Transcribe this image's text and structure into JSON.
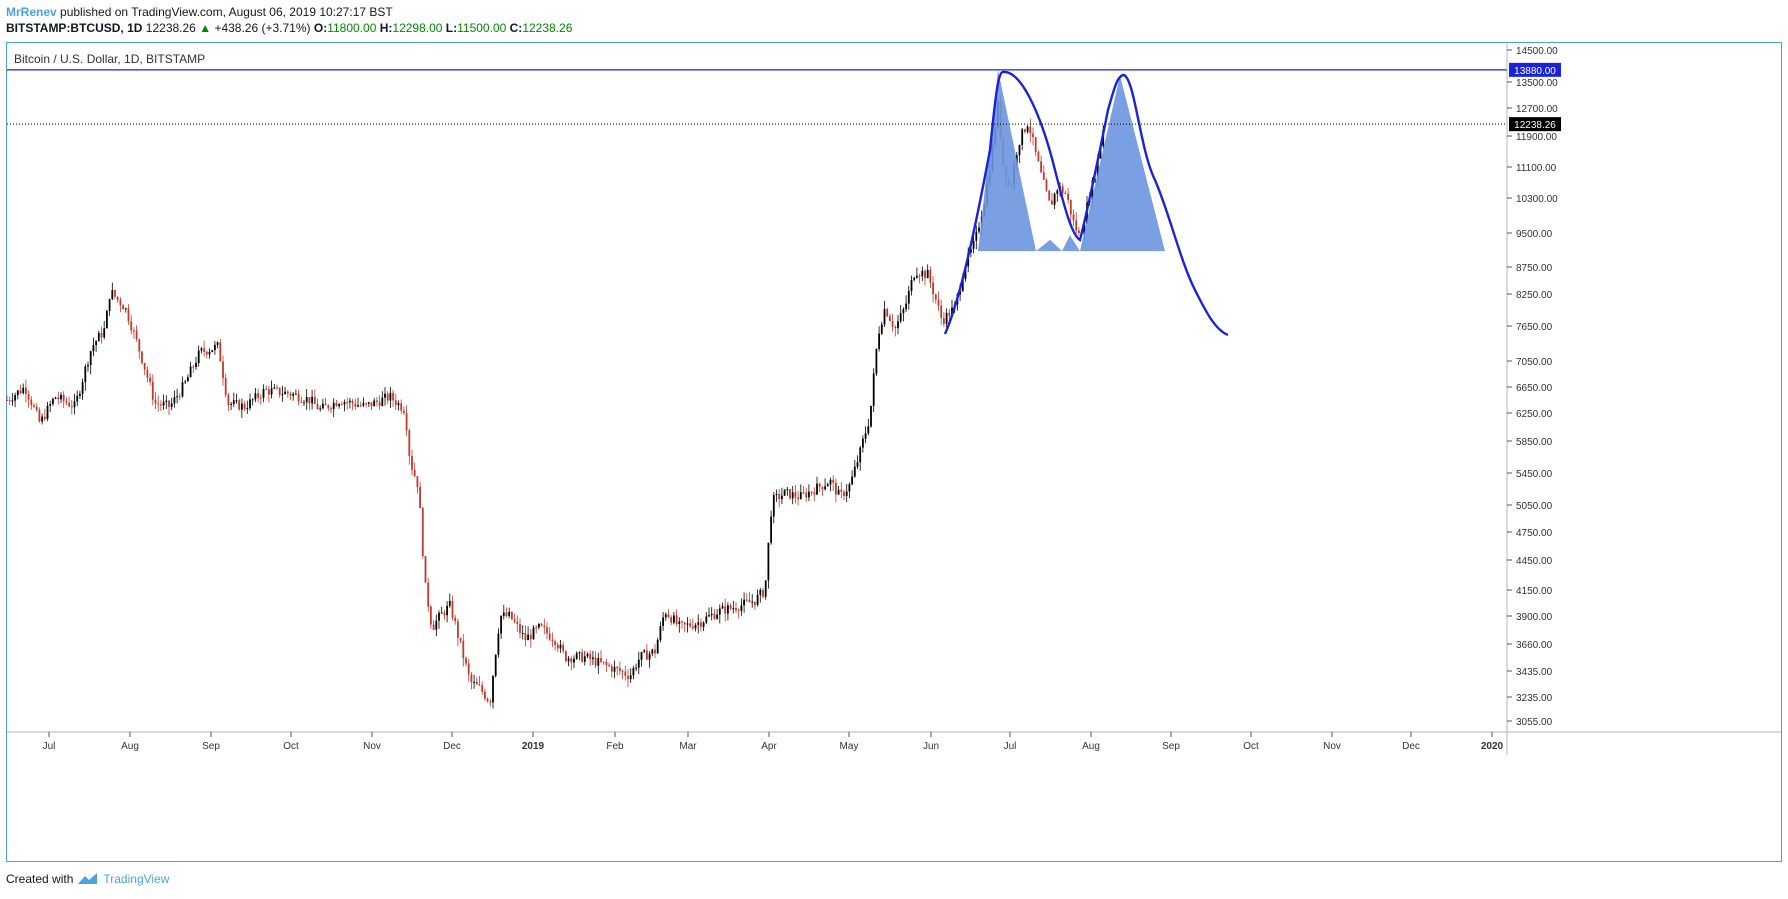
{
  "header": {
    "author": "MrRenev",
    "published_text": "published on TradingView.com, August 06, 2019 10:27:17 BST"
  },
  "symbol_bar": {
    "symbol": "BITSTAMP:BTCUSD, 1D",
    "last": "12238.26",
    "change": "+438.26 (+3.71%)",
    "o_label": "O:",
    "o": "11800.00",
    "h_label": "H:",
    "h": "12298.00",
    "l_label": "L:",
    "l": "11500.00",
    "c_label": "C:",
    "c": "12238.26",
    "up_color": "#008a00"
  },
  "footer": {
    "created_with": "Created with",
    "brand": "TradingView"
  },
  "chart_data": {
    "type": "candlestick",
    "title": "Bitcoin / U.S. Dollar, 1D, BITSTAMP",
    "y_ticks": [
      14500,
      13500,
      12700,
      11900,
      11100,
      10300,
      9500,
      8750,
      8250,
      7650,
      7050,
      6650,
      6250,
      5850,
      5450,
      5050,
      4750,
      4450,
      4150,
      3900,
      3660,
      3435,
      3235,
      3055
    ],
    "x_ticks": [
      "Jul",
      "Aug",
      "Sep",
      "Oct",
      "Nov",
      "Dec",
      "2019",
      "Feb",
      "Mar",
      "Apr",
      "May",
      "Jun",
      "Jul",
      "Aug",
      "Sep",
      "Oct",
      "Nov",
      "Dec",
      "2020"
    ],
    "resistance_line": {
      "value": 13880,
      "label": "13880.00",
      "color": "#1a23d9"
    },
    "last_price_line": {
      "value": 12238.26,
      "label": "12238.26"
    },
    "up_color": "#000000",
    "down_color": "#c0392b",
    "pattern_fill_color": "#6b95e0",
    "projection_color": "#1a23d9"
  }
}
